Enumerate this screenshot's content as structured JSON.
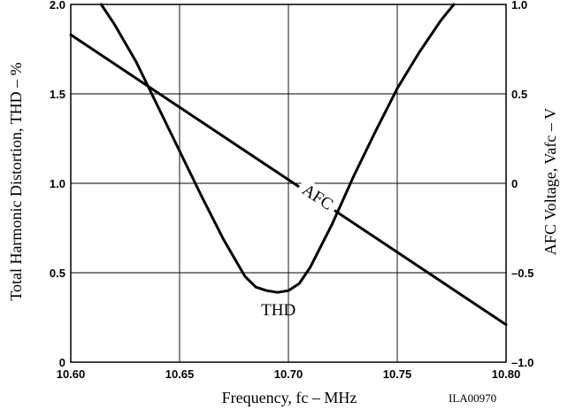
{
  "chart_data": {
    "type": "line",
    "xlabel": "Frequency, fc – MHz",
    "ylabel_left": "Total Harmonic Distortion, THD – %",
    "ylabel_right": "AFC Voltage, Vafc – V",
    "xlim": [
      10.6,
      10.8
    ],
    "ylim_left": [
      0,
      2.0
    ],
    "ylim_right": [
      -1.0,
      1.0
    ],
    "x_ticks": [
      "10.60",
      "10.65",
      "10.70",
      "10.75",
      "10.80"
    ],
    "y_ticks_left": [
      "0",
      "0.5",
      "1.0",
      "1.5",
      "2.0"
    ],
    "y_ticks_right": [
      "–1.0",
      "–0.5",
      "0",
      "0.5",
      "1.0"
    ],
    "grid": true,
    "figure_code": "ILA00970",
    "series": [
      {
        "name": "THD",
        "axis": "left",
        "x": [
          10.614,
          10.62,
          10.63,
          10.64,
          10.65,
          10.66,
          10.67,
          10.68,
          10.685,
          10.69,
          10.695,
          10.7,
          10.705,
          10.71,
          10.72,
          10.73,
          10.74,
          10.75,
          10.76,
          10.77,
          10.776
        ],
        "y": [
          2.0,
          1.89,
          1.68,
          1.43,
          1.18,
          0.93,
          0.69,
          0.48,
          0.42,
          0.4,
          0.39,
          0.4,
          0.44,
          0.53,
          0.77,
          1.04,
          1.29,
          1.53,
          1.73,
          1.91,
          2.0
        ]
      },
      {
        "name": "AFC",
        "axis": "right",
        "x": [
          10.6,
          10.8
        ],
        "y": [
          0.83,
          -0.79
        ]
      }
    ]
  }
}
